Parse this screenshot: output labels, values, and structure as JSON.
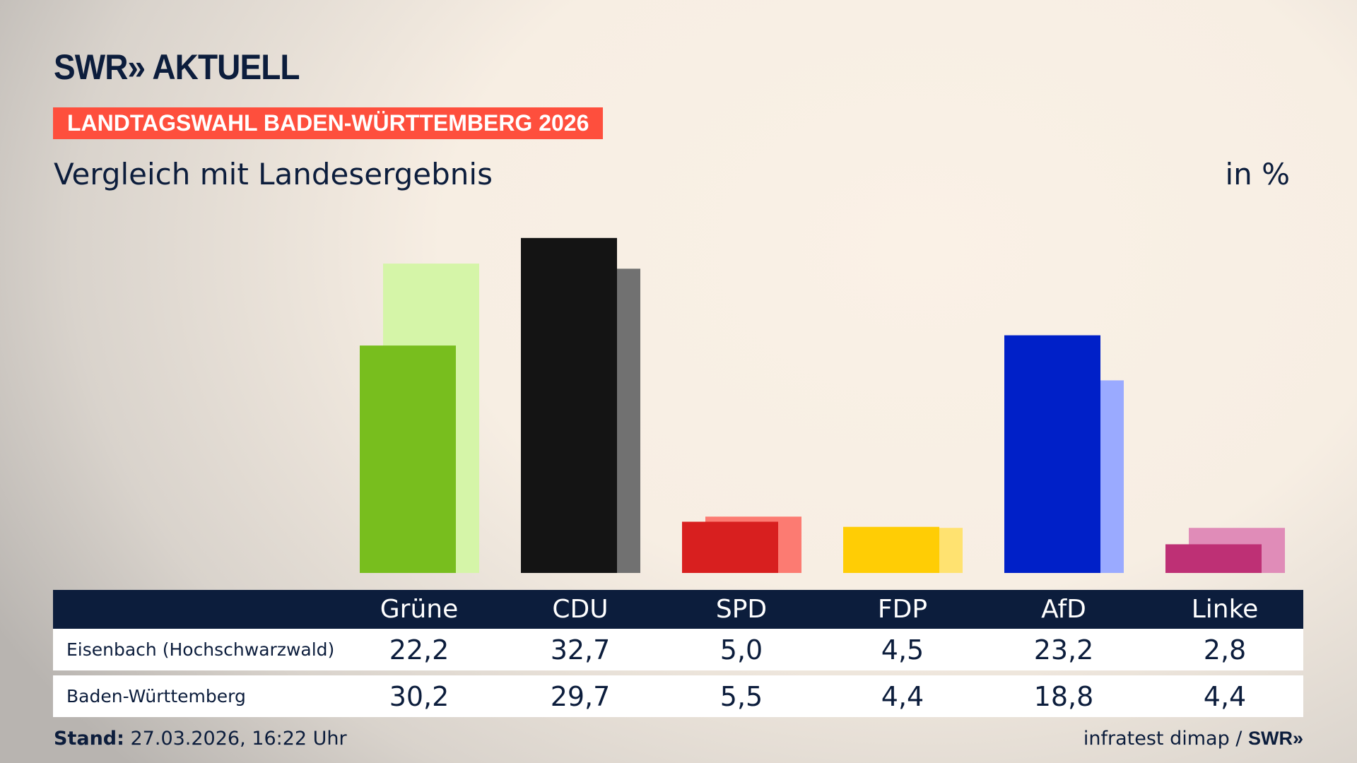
{
  "header": {
    "logo": "SWR» AKTUELL",
    "banner": "LANDTAGSWAHL BADEN-WÜRTTEMBERG 2026",
    "subtitle": "Vergleich mit Landesergebnis",
    "unit": "in %"
  },
  "chart_data": {
    "type": "bar",
    "categories": [
      "Grüne",
      "CDU",
      "SPD",
      "FDP",
      "AfD",
      "Linke"
    ],
    "series": [
      {
        "name": "Eisenbach (Hochschwarzwald)",
        "values": [
          22.2,
          32.7,
          5.0,
          4.5,
          23.2,
          2.8
        ],
        "display": [
          "22,2",
          "32,7",
          "5,0",
          "4,5",
          "23,2",
          "2,8"
        ],
        "colors": [
          "#78be1e",
          "#141414",
          "#d81f1f",
          "#ffcd05",
          "#0020c8",
          "#be3075"
        ]
      },
      {
        "name": "Baden-Württemberg",
        "values": [
          30.2,
          29.7,
          5.5,
          4.4,
          18.8,
          4.4
        ],
        "display": [
          "30,2",
          "29,7",
          "5,5",
          "4,4",
          "18,8",
          "4,4"
        ],
        "colors": [
          "#d5f5a8",
          "#717171",
          "#fc7b72",
          "#ffe270",
          "#9aaaff",
          "#e08cb8"
        ]
      }
    ],
    "ylim": [
      0,
      35
    ],
    "grid": false
  },
  "footer": {
    "stand_label": "Stand:",
    "stand_value": " 27.03.2026, 16:22 Uhr",
    "source": "infratest dimap / ",
    "source_logo": "SWR»"
  }
}
